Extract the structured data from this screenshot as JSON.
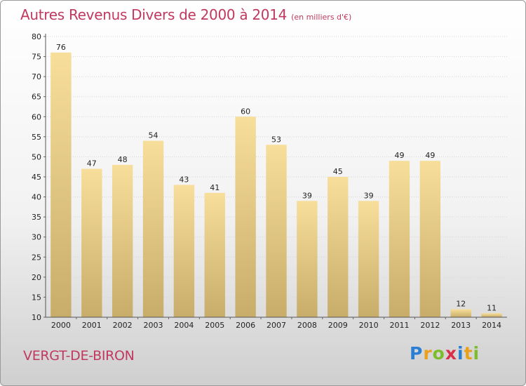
{
  "header": {
    "title": "Autres Revenus Divers de 2000 à 2014",
    "subtitle": "(en milliers d'€)"
  },
  "footer": {
    "commune": "VERGT-DE-BIRON",
    "logo": {
      "letters": [
        "P",
        "r",
        "o",
        "x",
        "i",
        "t",
        "i"
      ],
      "colors": [
        "#2a7fd4",
        "#e9a01d",
        "#7cbd2b",
        "#d9304a",
        "#2a7fd4",
        "#e9a01d",
        "#7cbd2b"
      ]
    }
  },
  "colors": {
    "bar_light": "#f7de9a",
    "bar_dark": "#c8ad6a",
    "title": "#c0395e"
  },
  "chart_data": {
    "type": "bar",
    "categories": [
      "2000",
      "2001",
      "2002",
      "2003",
      "2004",
      "2005",
      "2006",
      "2007",
      "2008",
      "2009",
      "2010",
      "2011",
      "2012",
      "2013",
      "2014"
    ],
    "values": [
      76,
      47,
      48,
      54,
      43,
      41,
      60,
      53,
      39,
      45,
      39,
      49,
      49,
      12,
      11
    ],
    "value_labels": [
      "76",
      "47",
      "48",
      "54",
      "43",
      "41",
      "60",
      "53",
      "39",
      "45",
      "39",
      "49",
      "49",
      "12",
      "11"
    ],
    "ylim": [
      10,
      80
    ],
    "yticks": [
      "10",
      "15",
      "20",
      "25",
      "30",
      "35",
      "40",
      "45",
      "50",
      "55",
      "60",
      "65",
      "70",
      "75",
      "80"
    ],
    "grid": true
  }
}
